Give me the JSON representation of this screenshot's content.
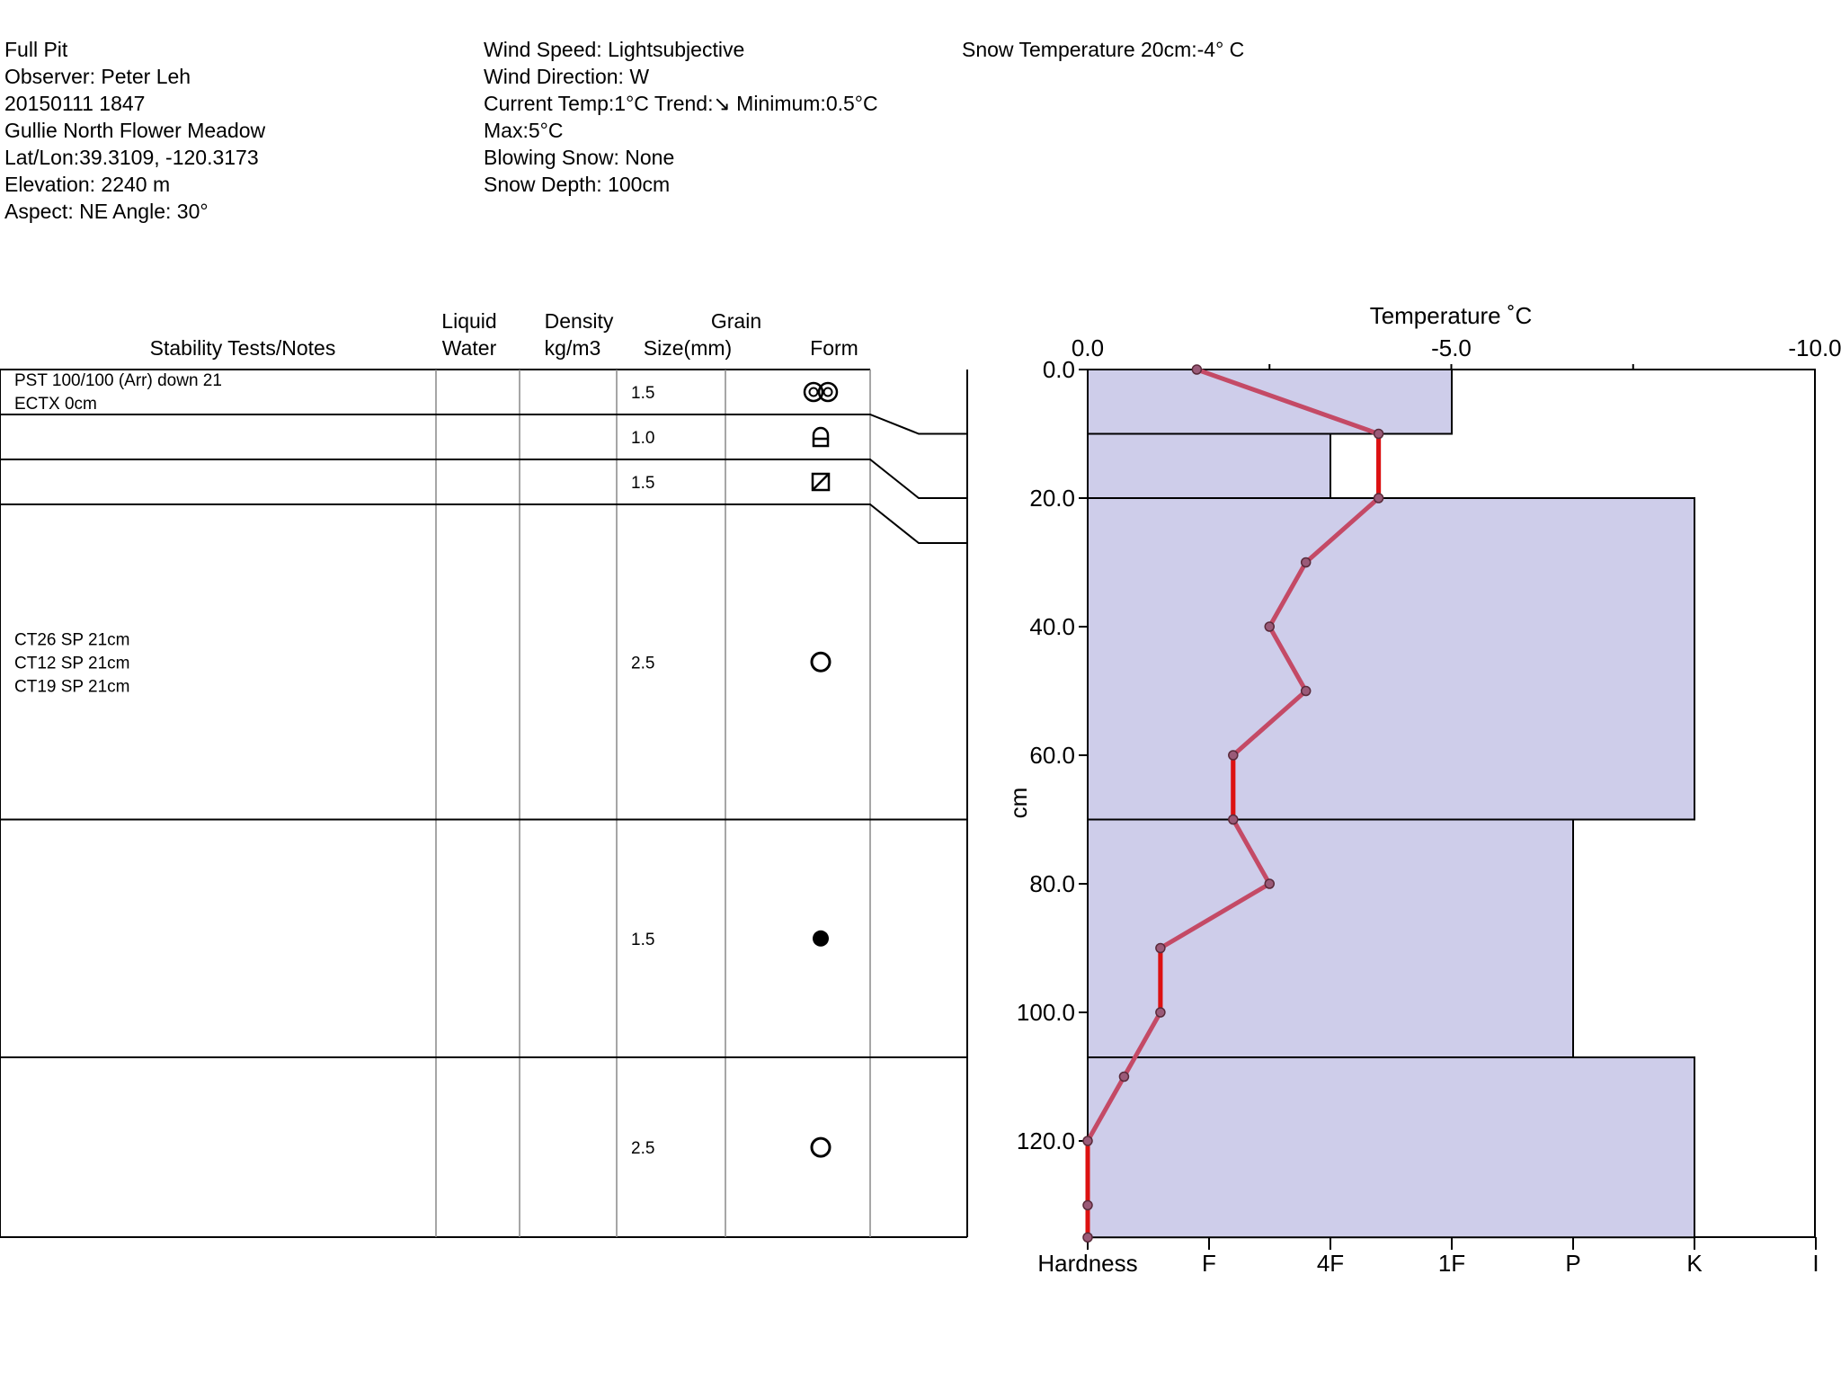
{
  "header": {
    "col1": [
      "Full Pit",
      "Observer: Peter Leh",
      "20150111 1847",
      "Gullie North Flower Meadow",
      "Lat/Lon:39.3109, -120.3173",
      "Elevation: 2240 m",
      "Aspect: NE Angle: 30°"
    ],
    "col2": [
      "Wind Speed: Lightsubjective",
      "Wind Direction: W",
      "Current Temp:1°C Trend:↘ Minimum:0.5°C",
      "Max:5°C",
      "Blowing Snow: None",
      "Snow Depth: 100cm"
    ],
    "col3": [
      "Snow Temperature 20cm:-4° C"
    ]
  },
  "table": {
    "headers": {
      "stability": "Stability Tests/Notes",
      "liquid1": "Liquid",
      "liquid2": "Water",
      "density1": "Density",
      "density2": "kg/m3",
      "grain": "Grain",
      "size": "Size(mm)",
      "form": "Form"
    },
    "layers": [
      {
        "top": 0,
        "bottom": 10,
        "notes": [
          "PST 100/100 (Arr) down 21",
          "ECTX 0cm"
        ],
        "grain_size": "1.5",
        "form_icon": "rounded-clustered-icon"
      },
      {
        "top": 10,
        "bottom": 20,
        "notes": [],
        "grain_size": "1.0",
        "form_icon": "faceted-rounded-icon"
      },
      {
        "top": 20,
        "bottom": 27,
        "notes": [],
        "grain_size": "1.5",
        "form_icon": "faceted-crystal-icon"
      },
      {
        "top": 27,
        "bottom": 70,
        "notes": [
          "CT26 SP 21cm",
          "CT12 SP 21cm",
          "CT19 SP 21cm"
        ],
        "grain_size": "2.5",
        "form_icon": "rounded-grain-icon"
      },
      {
        "top": 70,
        "bottom": 107,
        "notes": [],
        "grain_size": "1.5",
        "form_icon": "graupel-icon"
      },
      {
        "top": 107,
        "bottom": 135,
        "notes": [],
        "grain_size": "2.5",
        "form_icon": "rounded-grain-icon"
      }
    ]
  },
  "chart_data": {
    "type": "line",
    "title": "Temperature ˚C",
    "xlabel": "Temperature ˚C",
    "ylabel": "cm",
    "x_ticks": [
      "0.0",
      "-5.0",
      "-10.0"
    ],
    "y_ticks": [
      "0.0",
      "20.0",
      "40.0",
      "60.0",
      "80.0",
      "100.0",
      "120.0"
    ],
    "xlim": [
      0,
      -10
    ],
    "ylim": [
      0,
      135
    ],
    "temperature_profile": [
      {
        "depth": 0,
        "temp": -1.5
      },
      {
        "depth": 10,
        "temp": -4.0
      },
      {
        "depth": 20,
        "temp": -4.0
      },
      {
        "depth": 30,
        "temp": -3.0
      },
      {
        "depth": 40,
        "temp": -2.5
      },
      {
        "depth": 50,
        "temp": -3.0
      },
      {
        "depth": 60,
        "temp": -2.0
      },
      {
        "depth": 70,
        "temp": -2.0
      },
      {
        "depth": 80,
        "temp": -2.5
      },
      {
        "depth": 90,
        "temp": -1.0
      },
      {
        "depth": 100,
        "temp": -1.0
      },
      {
        "depth": 110,
        "temp": -0.5
      },
      {
        "depth": 120,
        "temp": 0.0
      },
      {
        "depth": 130,
        "temp": 0.0
      },
      {
        "depth": 135,
        "temp": 0.0
      }
    ],
    "hardness_label": "Hardness",
    "hardness_ticks": [
      "F",
      "4F",
      "1F",
      "P",
      "K",
      "I"
    ],
    "hardness_layers": [
      {
        "top": 0,
        "bottom": 10,
        "hardness": 3
      },
      {
        "top": 10,
        "bottom": 20,
        "hardness": 2
      },
      {
        "top": 20,
        "bottom": 70,
        "hardness": 5
      },
      {
        "top": 70,
        "bottom": 107,
        "hardness": 4
      },
      {
        "top": 107,
        "bottom": 135,
        "hardness": 5
      }
    ],
    "colors": {
      "hardness_fill": "#cecdea",
      "temp_line": "#c44a66",
      "temp_point": "#9a5a78",
      "gradient_flag": "#dd1111"
    }
  }
}
